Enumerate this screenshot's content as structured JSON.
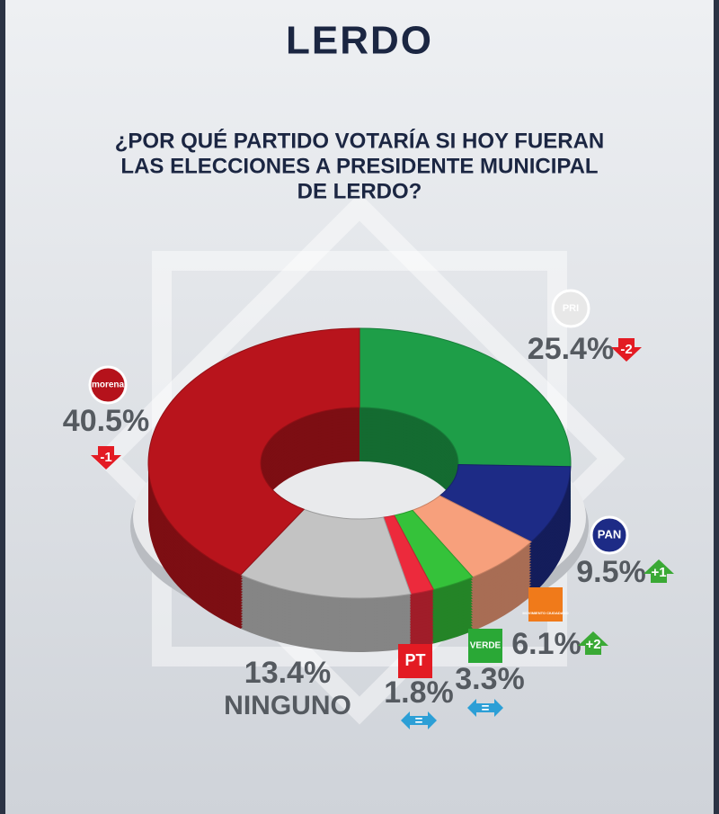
{
  "chart_data": {
    "type": "pie",
    "title": "LERDO",
    "subtitle": [
      "¿POR QUÉ PARTIDO VOTARÍA SI HOY FUERAN",
      "LAS ELECCIONES A PRESIDENTE MUNICIPAL",
      "DE LERDO?"
    ],
    "categories": [
      "PRI",
      "PAN",
      "MOVIMIENTO CIUDADANO",
      "VERDE",
      "PT",
      "NINGUNO",
      "morena"
    ],
    "values": [
      25.4,
      9.5,
      6.1,
      3.3,
      1.8,
      13.4,
      40.5
    ],
    "value_labels": [
      "25.4%",
      "9.5%",
      "6.1%",
      "3.3%",
      "1.8%",
      "13.4%",
      "40.5%"
    ],
    "change_labels": [
      "-2",
      "+1",
      "+2",
      "=",
      "=",
      null,
      "-1"
    ],
    "colors": [
      "#1e9e48",
      "#1d2b86",
      "#f7a07c",
      "#35c23a",
      "#ec2a3c",
      "#c3c3c3",
      "#b8141c"
    ]
  }
}
